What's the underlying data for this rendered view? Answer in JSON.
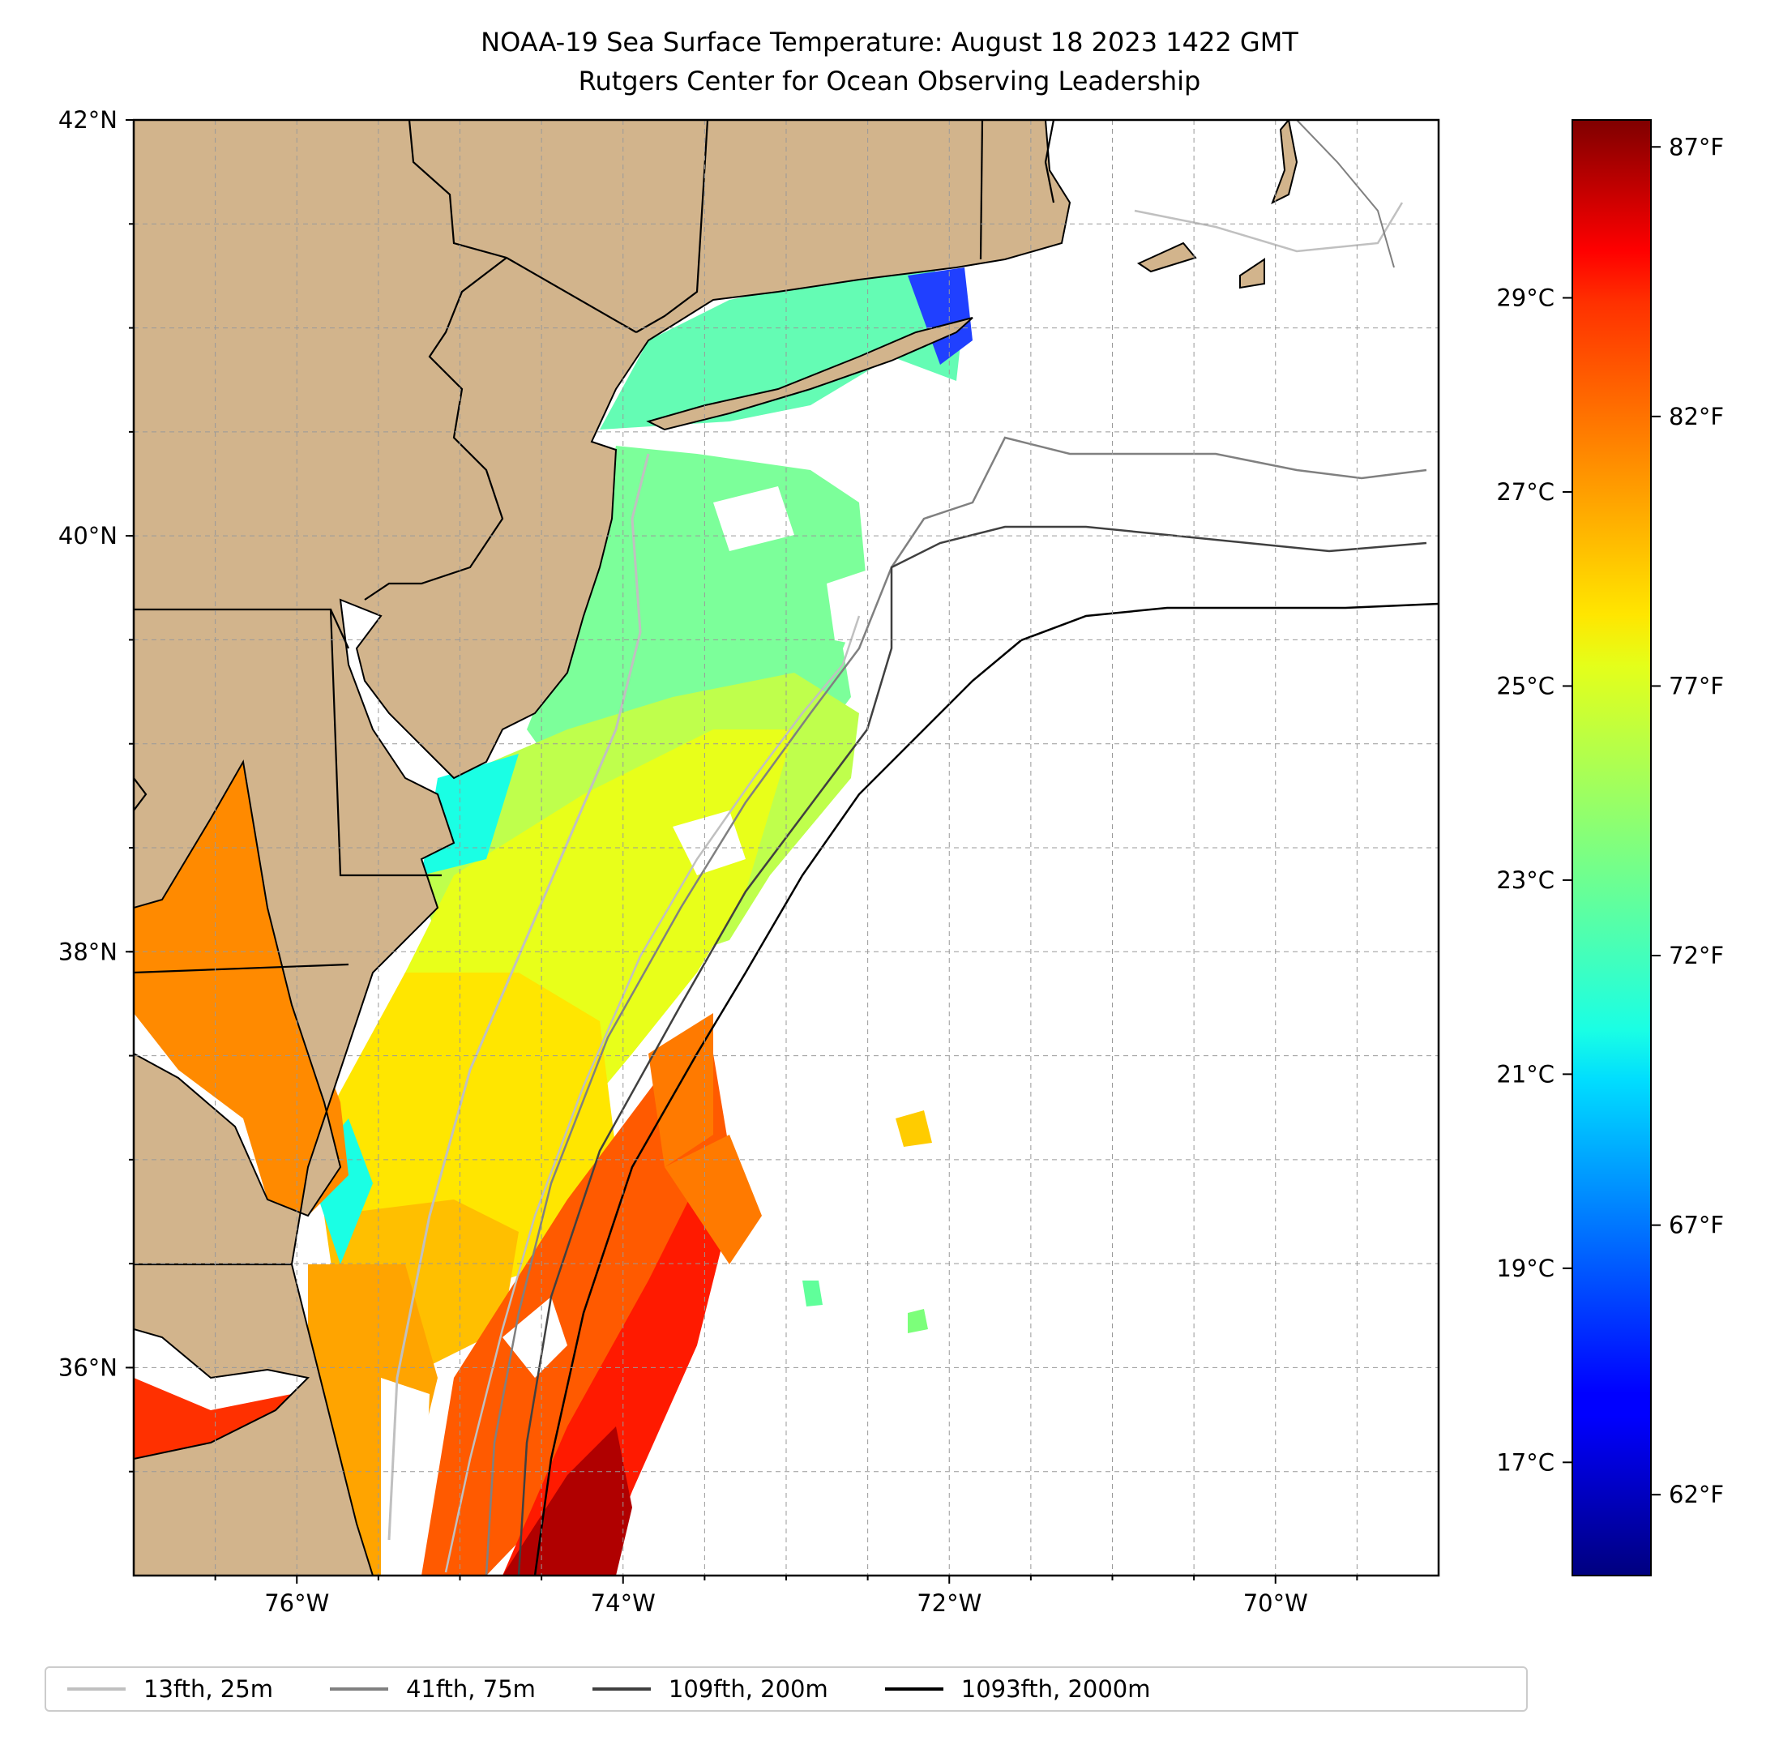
{
  "title": "NOAA-19 Sea Surface Temperature: August 18 2023 1422 GMT",
  "subtitle": "Rutgers Center for Ocean Observing Leadership",
  "map": {
    "lon_range": [
      -77,
      -69
    ],
    "lat_range": [
      35,
      42
    ],
    "x_ticks": [
      {
        "value": -76,
        "label": "76°W"
      },
      {
        "value": -74,
        "label": "74°W"
      },
      {
        "value": -72,
        "label": "72°W"
      },
      {
        "value": -70,
        "label": "70°W"
      }
    ],
    "y_ticks": [
      {
        "value": 42,
        "label": "42°N"
      },
      {
        "value": 40,
        "label": "40°N"
      },
      {
        "value": 38,
        "label": "38°N"
      },
      {
        "value": 36,
        "label": "36°N"
      }
    ],
    "land_color": "#d2b48c",
    "gridlines": true
  },
  "colorbar": {
    "cmap": "jet",
    "range_f": [
      60.5,
      87.5
    ],
    "fahrenheit_ticks": [
      {
        "value": 62,
        "label": "62°F"
      },
      {
        "value": 67,
        "label": "67°F"
      },
      {
        "value": 72,
        "label": "72°F"
      },
      {
        "value": 77,
        "label": "77°F"
      },
      {
        "value": 82,
        "label": "82°F"
      },
      {
        "value": 87,
        "label": "87°F"
      }
    ],
    "celsius_ticks": [
      {
        "value": 17,
        "label": "17°C"
      },
      {
        "value": 19,
        "label": "19°C"
      },
      {
        "value": 21,
        "label": "21°C"
      },
      {
        "value": 23,
        "label": "23°C"
      },
      {
        "value": 25,
        "label": "25°C"
      },
      {
        "value": 27,
        "label": "27°C"
      },
      {
        "value": 29,
        "label": "29°C"
      }
    ]
  },
  "legend": [
    {
      "label": "13fth, 25m",
      "color": "#c0c0c0"
    },
    {
      "label": "41fth, 75m",
      "color": "#808080"
    },
    {
      "label": "109fth, 200m",
      "color": "#404040"
    },
    {
      "label": "1093fth, 2000m",
      "color": "#000000"
    }
  ]
}
